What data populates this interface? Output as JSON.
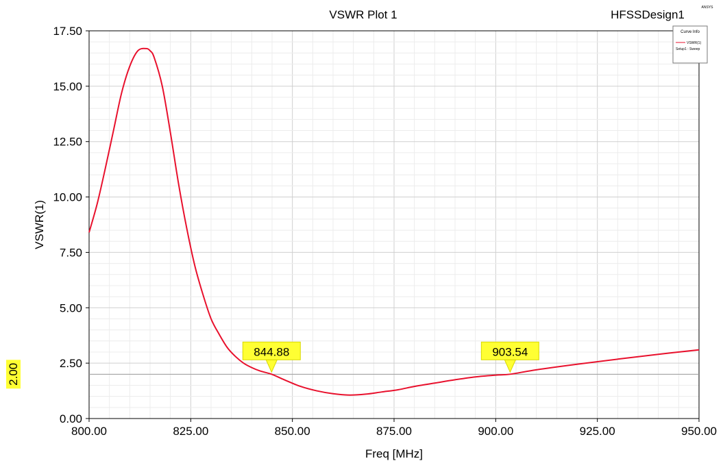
{
  "chart_data": {
    "type": "line",
    "title": "VSWR Plot 1",
    "design_name": "HFSSDesign1",
    "corner_tag": "ANSYS",
    "xlabel": "Freq [MHz]",
    "ylabel": "VSWR(1)",
    "xlim": [
      800,
      950
    ],
    "ylim": [
      0,
      17.5
    ],
    "x_ticks": [
      "800.00",
      "825.00",
      "850.00",
      "875.00",
      "900.00",
      "925.00",
      "950.00"
    ],
    "y_ticks": [
      "0.00",
      "2.50",
      "5.00",
      "7.50",
      "10.00",
      "12.50",
      "15.00",
      "17.50"
    ],
    "grid": true,
    "legend": {
      "title": "Curve Info",
      "placement": "top-right",
      "entries": [
        "VSWR(1)",
        "Setup1 : Sweep"
      ]
    },
    "series": [
      {
        "name": "VSWR(1)",
        "color": "#e8102c",
        "x": [
          800,
          802,
          804,
          806,
          808,
          810,
          812,
          814,
          815,
          816,
          818,
          820,
          822,
          824,
          826,
          828,
          830,
          832,
          834,
          836,
          838,
          840,
          842,
          844.88,
          848,
          852,
          856,
          860,
          864,
          868,
          872,
          876,
          880,
          885,
          890,
          895,
          900,
          903.54,
          910,
          920,
          930,
          940,
          950
        ],
        "values": [
          8.4,
          9.7,
          11.3,
          13.0,
          14.7,
          15.9,
          16.6,
          16.7,
          16.6,
          16.3,
          15.0,
          12.9,
          10.6,
          8.6,
          6.9,
          5.6,
          4.5,
          3.8,
          3.2,
          2.8,
          2.5,
          2.3,
          2.15,
          2.0,
          1.75,
          1.45,
          1.25,
          1.12,
          1.06,
          1.1,
          1.2,
          1.3,
          1.45,
          1.6,
          1.75,
          1.88,
          1.96,
          2.0,
          2.2,
          2.45,
          2.68,
          2.9,
          3.1
        ]
      }
    ],
    "reference_line": {
      "y": 2.0,
      "label": "2.00"
    },
    "markers": [
      {
        "x": 844.88,
        "y": 2.0,
        "label": "844.88"
      },
      {
        "x": 903.54,
        "y": 2.0,
        "label": "903.54"
      }
    ]
  }
}
